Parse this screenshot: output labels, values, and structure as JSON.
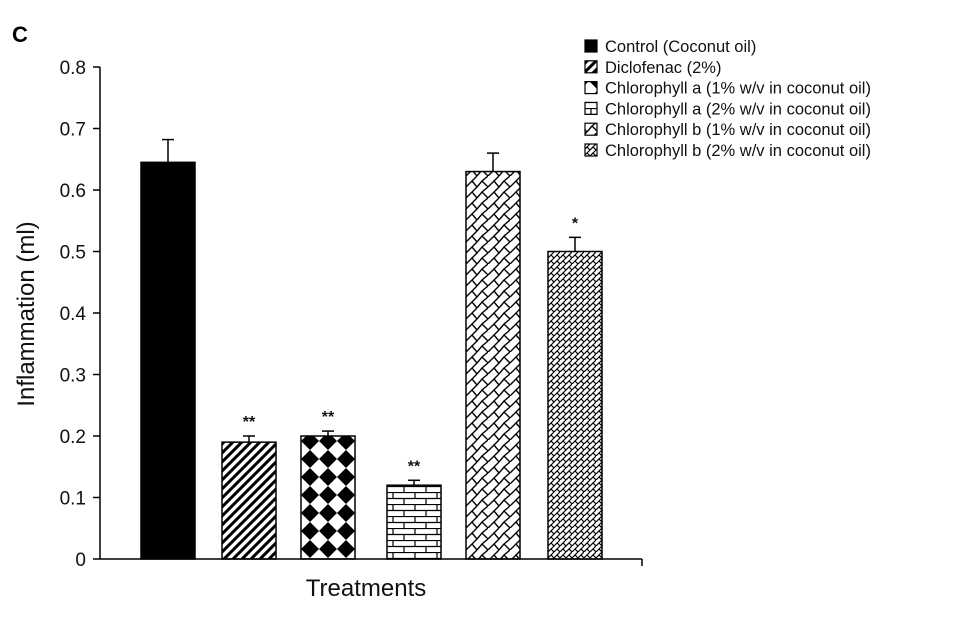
{
  "panel_label": "C",
  "chart_data": {
    "type": "bar",
    "xlabel": "Treatments",
    "ylabel": "Inflammation (ml)",
    "ylim": [
      0,
      0.8
    ],
    "yticks": [
      "0",
      "0.1",
      "0.2",
      "0.3",
      "0.4",
      "0.5",
      "0.6",
      "0.7",
      "0.8"
    ],
    "grid": false,
    "legend_position": "top-right",
    "series": [
      {
        "name": "Control (Coconut oil)",
        "value": 0.645,
        "error": 0.037,
        "significance": "",
        "pattern": "solid-black"
      },
      {
        "name": "Diclofenac (2%)",
        "value": 0.19,
        "error": 0.01,
        "significance": "**",
        "pattern": "diagonal-stripes"
      },
      {
        "name": "Chlorophyll a (1% w/v in coconut oil)",
        "value": 0.2,
        "error": 0.008,
        "significance": "**",
        "pattern": "diamond-checker"
      },
      {
        "name": "Chlorophyll a (2% w/v in coconut oil)",
        "value": 0.12,
        "error": 0.008,
        "significance": "**",
        "pattern": "brick"
      },
      {
        "name": "Chlorophyll b (1% w/v in coconut oil)",
        "value": 0.63,
        "error": 0.03,
        "significance": "",
        "pattern": "large-weave"
      },
      {
        "name": "Chlorophyll b (2% w/v in coconut oil)",
        "value": 0.5,
        "error": 0.023,
        "significance": "*",
        "pattern": "small-weave"
      }
    ]
  }
}
